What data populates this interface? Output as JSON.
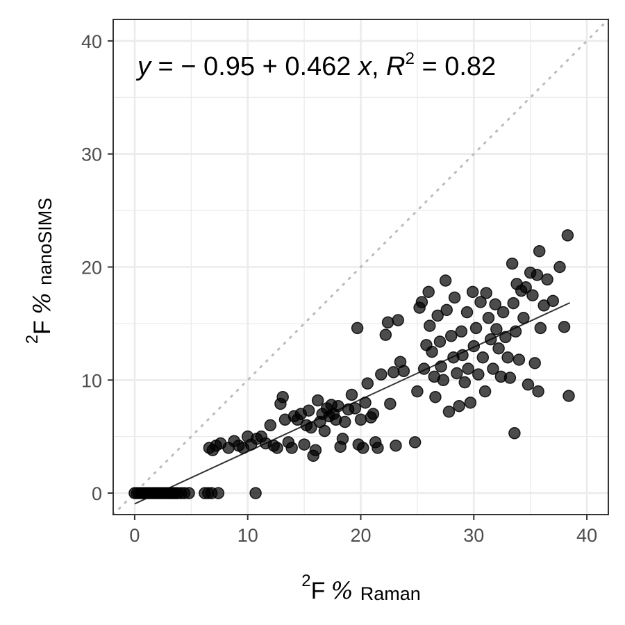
{
  "chart_data": {
    "type": "scatter",
    "title": "",
    "xlabel": {
      "sup": "2",
      "main": "F",
      "pct": "%",
      "sub": "Raman"
    },
    "ylabel": {
      "sup": "2",
      "main": "F",
      "pct": "%",
      "sub": "nanoSIMS"
    },
    "xlim": [
      -1.9,
      41.9
    ],
    "ylim": [
      -1.9,
      41.9
    ],
    "x_ticks": [
      0,
      10,
      20,
      30,
      40
    ],
    "y_ticks": [
      0,
      10,
      20,
      30,
      40
    ],
    "x_tick_labels": [
      "0",
      "10",
      "20",
      "30",
      "40"
    ],
    "y_tick_labels": [
      "0",
      "10",
      "20",
      "30",
      "40"
    ],
    "grid": true,
    "legend": "none",
    "colors": {
      "points": "#000000",
      "point_opacity": 0.7,
      "regression_line": "#333333",
      "identity_line": "#bbbbbb",
      "grid": "#ebebeb",
      "panel_border": "#333333"
    },
    "annotation": {
      "y_var": "y",
      "eq_part1": " = − 0.95 + 0.462 ",
      "x_var": "x",
      "comma": ", ",
      "r_var": "R",
      "r_sup": "2",
      "eq_part2": " = 0.82"
    },
    "regression": {
      "intercept": -0.95,
      "slope": 0.462,
      "r_squared": 0.82,
      "x_range": [
        0,
        38.5
      ]
    },
    "identity_line": {
      "x_range": [
        -1.9,
        41.9
      ]
    },
    "points": [
      {
        "x": 0.0,
        "y": 0.0
      },
      {
        "x": 0.2,
        "y": 0.0
      },
      {
        "x": 0.4,
        "y": 0.0
      },
      {
        "x": 0.6,
        "y": 0.0
      },
      {
        "x": 0.8,
        "y": 0.0
      },
      {
        "x": 1.0,
        "y": 0.0
      },
      {
        "x": 1.2,
        "y": 0.0
      },
      {
        "x": 1.4,
        "y": 0.0
      },
      {
        "x": 1.6,
        "y": 0.0
      },
      {
        "x": 1.8,
        "y": 0.0
      },
      {
        "x": 2.0,
        "y": 0.0
      },
      {
        "x": 2.2,
        "y": 0.0
      },
      {
        "x": 2.4,
        "y": 0.0
      },
      {
        "x": 2.6,
        "y": 0.0
      },
      {
        "x": 2.8,
        "y": 0.0
      },
      {
        "x": 3.0,
        "y": 0.0
      },
      {
        "x": 3.2,
        "y": 0.0
      },
      {
        "x": 3.4,
        "y": 0.0
      },
      {
        "x": 3.6,
        "y": 0.0
      },
      {
        "x": 3.8,
        "y": 0.0
      },
      {
        "x": 4.1,
        "y": 0.0
      },
      {
        "x": 4.4,
        "y": 0.0
      },
      {
        "x": 4.8,
        "y": 0.0
      },
      {
        "x": 6.2,
        "y": 0.0
      },
      {
        "x": 6.5,
        "y": 0.0
      },
      {
        "x": 6.8,
        "y": 0.0
      },
      {
        "x": 7.4,
        "y": 0.0
      },
      {
        "x": 10.7,
        "y": 0.0
      },
      {
        "x": 6.6,
        "y": 4.0
      },
      {
        "x": 6.9,
        "y": 3.8
      },
      {
        "x": 7.2,
        "y": 4.2
      },
      {
        "x": 7.6,
        "y": 4.4
      },
      {
        "x": 8.3,
        "y": 4.0
      },
      {
        "x": 8.8,
        "y": 4.6
      },
      {
        "x": 9.2,
        "y": 4.2
      },
      {
        "x": 9.6,
        "y": 4.0
      },
      {
        "x": 10.0,
        "y": 5.0
      },
      {
        "x": 10.3,
        "y": 4.3
      },
      {
        "x": 10.8,
        "y": 4.8
      },
      {
        "x": 11.2,
        "y": 5.0
      },
      {
        "x": 11.6,
        "y": 4.4
      },
      {
        "x": 12.0,
        "y": 6.0
      },
      {
        "x": 12.3,
        "y": 4.2
      },
      {
        "x": 12.6,
        "y": 4.0
      },
      {
        "x": 12.9,
        "y": 7.9
      },
      {
        "x": 13.1,
        "y": 8.5
      },
      {
        "x": 13.3,
        "y": 6.5
      },
      {
        "x": 13.6,
        "y": 4.5
      },
      {
        "x": 13.9,
        "y": 4.0
      },
      {
        "x": 14.1,
        "y": 6.8
      },
      {
        "x": 14.4,
        "y": 6.5
      },
      {
        "x": 14.7,
        "y": 7.0
      },
      {
        "x": 15.0,
        "y": 4.3
      },
      {
        "x": 15.2,
        "y": 6.0
      },
      {
        "x": 15.4,
        "y": 7.3
      },
      {
        "x": 15.6,
        "y": 5.8
      },
      {
        "x": 15.8,
        "y": 3.3
      },
      {
        "x": 16.0,
        "y": 3.8
      },
      {
        "x": 16.2,
        "y": 8.2
      },
      {
        "x": 16.4,
        "y": 6.3
      },
      {
        "x": 16.6,
        "y": 7.0
      },
      {
        "x": 16.8,
        "y": 5.5
      },
      {
        "x": 17.0,
        "y": 7.5
      },
      {
        "x": 17.2,
        "y": 6.8
      },
      {
        "x": 17.4,
        "y": 7.8
      },
      {
        "x": 17.6,
        "y": 7.0
      },
      {
        "x": 17.8,
        "y": 6.5
      },
      {
        "x": 18.0,
        "y": 7.7
      },
      {
        "x": 18.2,
        "y": 4.1
      },
      {
        "x": 18.4,
        "y": 4.8
      },
      {
        "x": 18.6,
        "y": 6.3
      },
      {
        "x": 18.9,
        "y": 7.4
      },
      {
        "x": 19.2,
        "y": 8.7
      },
      {
        "x": 19.5,
        "y": 7.5
      },
      {
        "x": 19.7,
        "y": 14.6
      },
      {
        "x": 19.8,
        "y": 4.3
      },
      {
        "x": 20.0,
        "y": 6.5
      },
      {
        "x": 20.2,
        "y": 4.0
      },
      {
        "x": 20.4,
        "y": 8.0
      },
      {
        "x": 20.6,
        "y": 9.7
      },
      {
        "x": 20.9,
        "y": 6.7
      },
      {
        "x": 21.1,
        "y": 7.0
      },
      {
        "x": 21.3,
        "y": 4.5
      },
      {
        "x": 21.5,
        "y": 4.0
      },
      {
        "x": 21.8,
        "y": 10.5
      },
      {
        "x": 22.2,
        "y": 14.0
      },
      {
        "x": 22.4,
        "y": 15.1
      },
      {
        "x": 22.6,
        "y": 7.9
      },
      {
        "x": 22.9,
        "y": 10.7
      },
      {
        "x": 23.1,
        "y": 4.2
      },
      {
        "x": 23.3,
        "y": 15.3
      },
      {
        "x": 23.5,
        "y": 11.6
      },
      {
        "x": 23.8,
        "y": 10.8
      },
      {
        "x": 24.8,
        "y": 4.5
      },
      {
        "x": 25.0,
        "y": 9.0
      },
      {
        "x": 25.2,
        "y": 16.4
      },
      {
        "x": 25.4,
        "y": 16.9
      },
      {
        "x": 25.6,
        "y": 11.0
      },
      {
        "x": 25.8,
        "y": 13.1
      },
      {
        "x": 26.0,
        "y": 17.8
      },
      {
        "x": 26.1,
        "y": 14.8
      },
      {
        "x": 26.3,
        "y": 12.5
      },
      {
        "x": 26.5,
        "y": 10.3
      },
      {
        "x": 26.6,
        "y": 8.5
      },
      {
        "x": 26.8,
        "y": 15.7
      },
      {
        "x": 27.0,
        "y": 13.4
      },
      {
        "x": 27.1,
        "y": 11.2
      },
      {
        "x": 27.3,
        "y": 10.0
      },
      {
        "x": 27.5,
        "y": 18.8
      },
      {
        "x": 27.6,
        "y": 16.2
      },
      {
        "x": 27.8,
        "y": 7.2
      },
      {
        "x": 28.0,
        "y": 13.9
      },
      {
        "x": 28.2,
        "y": 12.0
      },
      {
        "x": 28.3,
        "y": 17.3
      },
      {
        "x": 28.5,
        "y": 10.6
      },
      {
        "x": 28.7,
        "y": 7.7
      },
      {
        "x": 28.9,
        "y": 14.3
      },
      {
        "x": 29.0,
        "y": 12.2
      },
      {
        "x": 29.2,
        "y": 9.8
      },
      {
        "x": 29.4,
        "y": 16.0
      },
      {
        "x": 29.5,
        "y": 11.0
      },
      {
        "x": 29.7,
        "y": 8.0
      },
      {
        "x": 29.9,
        "y": 17.8
      },
      {
        "x": 30.0,
        "y": 13.0
      },
      {
        "x": 30.2,
        "y": 14.6
      },
      {
        "x": 30.4,
        "y": 10.5
      },
      {
        "x": 30.6,
        "y": 16.9
      },
      {
        "x": 30.8,
        "y": 12.0
      },
      {
        "x": 31.0,
        "y": 9.0
      },
      {
        "x": 31.1,
        "y": 17.7
      },
      {
        "x": 31.3,
        "y": 15.5
      },
      {
        "x": 31.5,
        "y": 13.6
      },
      {
        "x": 31.7,
        "y": 11.0
      },
      {
        "x": 31.9,
        "y": 16.7
      },
      {
        "x": 32.0,
        "y": 14.5
      },
      {
        "x": 32.2,
        "y": 12.8
      },
      {
        "x": 32.4,
        "y": 10.3
      },
      {
        "x": 32.6,
        "y": 16.0
      },
      {
        "x": 32.8,
        "y": 13.8
      },
      {
        "x": 33.0,
        "y": 12.0
      },
      {
        "x": 33.2,
        "y": 10.2
      },
      {
        "x": 33.4,
        "y": 20.3
      },
      {
        "x": 33.5,
        "y": 16.8
      },
      {
        "x": 33.6,
        "y": 5.3
      },
      {
        "x": 33.7,
        "y": 14.3
      },
      {
        "x": 33.8,
        "y": 18.5
      },
      {
        "x": 34.0,
        "y": 11.8
      },
      {
        "x": 34.2,
        "y": 17.9
      },
      {
        "x": 34.4,
        "y": 15.5
      },
      {
        "x": 34.6,
        "y": 18.2
      },
      {
        "x": 34.8,
        "y": 9.6
      },
      {
        "x": 35.0,
        "y": 19.5
      },
      {
        "x": 35.2,
        "y": 17.5
      },
      {
        "x": 35.4,
        "y": 11.5
      },
      {
        "x": 35.6,
        "y": 19.3
      },
      {
        "x": 35.7,
        "y": 9.0
      },
      {
        "x": 35.8,
        "y": 21.4
      },
      {
        "x": 35.9,
        "y": 14.6
      },
      {
        "x": 36.2,
        "y": 16.6
      },
      {
        "x": 36.5,
        "y": 18.9
      },
      {
        "x": 37.0,
        "y": 17.0
      },
      {
        "x": 37.6,
        "y": 20.0
      },
      {
        "x": 38.0,
        "y": 14.7
      },
      {
        "x": 38.3,
        "y": 22.8
      },
      {
        "x": 38.4,
        "y": 8.6
      }
    ]
  }
}
